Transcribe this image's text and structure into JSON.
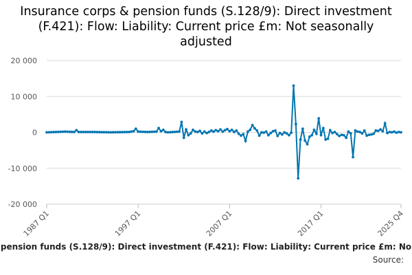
{
  "chart_data": {
    "type": "line",
    "title": "Insurance corps & pension funds (S.128/9): Direct investment (F.421): Flow: Liability: Current price £m: Not seasonally adjusted",
    "series_label_shown": "pension funds (S.128/9): Direct investment (F.421): Flow: Liability: Current price £m: No",
    "source_label": "Source:",
    "xlabel": "",
    "ylabel": "",
    "x_ticks": [
      "1987 Q1",
      "1997 Q1",
      "2007 Q1",
      "2017 Q1",
      "2025 Q4"
    ],
    "y_ticks": [
      "20 000",
      "10 000",
      "0",
      "-10 000",
      "-20 000"
    ],
    "y_tick_values": [
      20000,
      10000,
      0,
      -10000,
      -20000
    ],
    "ylim": [
      -20000,
      20000
    ],
    "x_range": [
      "1987 Q1",
      "2025 Q4"
    ],
    "grid": "horizontal",
    "legend": "bottom",
    "color": "#0075b0",
    "series": [
      {
        "name": "pension funds (S.128/9): Direct investment (F.421): Flow: Liability: Current price £m: No",
        "points": [
          [
            "1987 Q1",
            0
          ],
          [
            "1988 Q1",
            100
          ],
          [
            "1989 Q1",
            200
          ],
          [
            "1990 Q1",
            100
          ],
          [
            "1990 Q2",
            600
          ],
          [
            "1990 Q3",
            100
          ],
          [
            "1992 Q1",
            100
          ],
          [
            "1994 Q1",
            0
          ],
          [
            "1996 Q1",
            100
          ],
          [
            "1996 Q3",
            300
          ],
          [
            "1996 Q4",
            1000
          ],
          [
            "1997 Q1",
            200
          ],
          [
            "1998 Q1",
            100
          ],
          [
            "1999 Q1",
            200
          ],
          [
            "1999 Q2",
            1200
          ],
          [
            "1999 Q3",
            300
          ],
          [
            "1999 Q4",
            700
          ],
          [
            "2000 Q1",
            100
          ],
          [
            "2000 Q2",
            0
          ],
          [
            "2001 Q3",
            200
          ],
          [
            "2001 Q4",
            2900
          ],
          [
            "2002 Q1",
            -1500
          ],
          [
            "2002 Q2",
            800
          ],
          [
            "2002 Q3",
            -800
          ],
          [
            "2002 Q4",
            -300
          ],
          [
            "2003 Q1",
            700
          ],
          [
            "2003 Q2",
            200
          ],
          [
            "2003 Q3",
            100
          ],
          [
            "2003 Q4",
            400
          ],
          [
            "2004 Q1",
            -300
          ],
          [
            "2004 Q2",
            200
          ],
          [
            "2004 Q3",
            -200
          ],
          [
            "2004 Q4",
            100
          ],
          [
            "2005 Q1",
            500
          ],
          [
            "2005 Q2",
            200
          ],
          [
            "2005 Q3",
            600
          ],
          [
            "2005 Q4",
            300
          ],
          [
            "2006 Q1",
            800
          ],
          [
            "2006 Q2",
            200
          ],
          [
            "2006 Q3",
            600
          ],
          [
            "2006 Q4",
            900
          ],
          [
            "2007 Q1",
            300
          ],
          [
            "2007 Q2",
            700
          ],
          [
            "2007 Q3",
            100
          ],
          [
            "2007 Q4",
            500
          ],
          [
            "2008 Q1",
            -400
          ],
          [
            "2008 Q2",
            -900
          ],
          [
            "2008 Q3",
            -500
          ],
          [
            "2008 Q4",
            -2400
          ],
          [
            "2009 Q1",
            200
          ],
          [
            "2009 Q2",
            700
          ],
          [
            "2009 Q3",
            2000
          ],
          [
            "2009 Q4",
            1100
          ],
          [
            "2010 Q1",
            500
          ],
          [
            "2010 Q2",
            -900
          ],
          [
            "2010 Q3",
            0
          ],
          [
            "2010 Q4",
            -100
          ],
          [
            "2011 Q1",
            200
          ],
          [
            "2011 Q2",
            -800
          ],
          [
            "2011 Q3",
            -200
          ],
          [
            "2011 Q4",
            300
          ],
          [
            "2012 Q1",
            500
          ],
          [
            "2012 Q2",
            -1000
          ],
          [
            "2012 Q3",
            -200
          ],
          [
            "2012 Q4",
            -600
          ],
          [
            "2013 Q1",
            0
          ],
          [
            "2013 Q2",
            -300
          ],
          [
            "2013 Q3",
            -800
          ],
          [
            "2013 Q4",
            -100
          ],
          [
            "2014 Q1",
            13000
          ],
          [
            "2014 Q2",
            2300
          ],
          [
            "2014 Q3",
            -12800
          ],
          [
            "2014 Q4",
            -2000
          ],
          [
            "2015 Q1",
            1000
          ],
          [
            "2015 Q2",
            -2300
          ],
          [
            "2015 Q3",
            -3300
          ],
          [
            "2015 Q4",
            -1200
          ],
          [
            "2016 Q1",
            -800
          ],
          [
            "2016 Q2",
            700
          ],
          [
            "2016 Q3",
            -400
          ],
          [
            "2016 Q4",
            3900
          ],
          [
            "2017 Q1",
            -800
          ],
          [
            "2017 Q2",
            1200
          ],
          [
            "2017 Q3",
            -2000
          ],
          [
            "2017 Q4",
            -1800
          ],
          [
            "2018 Q1",
            600
          ],
          [
            "2018 Q2",
            -200
          ],
          [
            "2018 Q3",
            100
          ],
          [
            "2018 Q4",
            -500
          ],
          [
            "2019 Q1",
            -1000
          ],
          [
            "2019 Q2",
            -700
          ],
          [
            "2019 Q3",
            -800
          ],
          [
            "2019 Q4",
            -1500
          ],
          [
            "2020 Q1",
            200
          ],
          [
            "2020 Q2",
            -300
          ],
          [
            "2020 Q3",
            -6900
          ],
          [
            "2020 Q4",
            500
          ],
          [
            "2021 Q1",
            200
          ],
          [
            "2021 Q2",
            100
          ],
          [
            "2021 Q3",
            -300
          ],
          [
            "2021 Q4",
            500
          ],
          [
            "2022 Q1",
            -900
          ],
          [
            "2022 Q2",
            -700
          ],
          [
            "2022 Q3",
            -600
          ],
          [
            "2022 Q4",
            -400
          ],
          [
            "2023 Q1",
            500
          ],
          [
            "2023 Q2",
            400
          ],
          [
            "2023 Q3",
            800
          ],
          [
            "2023 Q4",
            300
          ],
          [
            "2024 Q1",
            2500
          ],
          [
            "2024 Q2",
            -200
          ],
          [
            "2024 Q3",
            100
          ],
          [
            "2024 Q4",
            0
          ],
          [
            "2025 Q1",
            200
          ],
          [
            "2025 Q2",
            -100
          ],
          [
            "2025 Q3",
            100
          ],
          [
            "2025 Q4",
            0
          ]
        ]
      }
    ]
  }
}
